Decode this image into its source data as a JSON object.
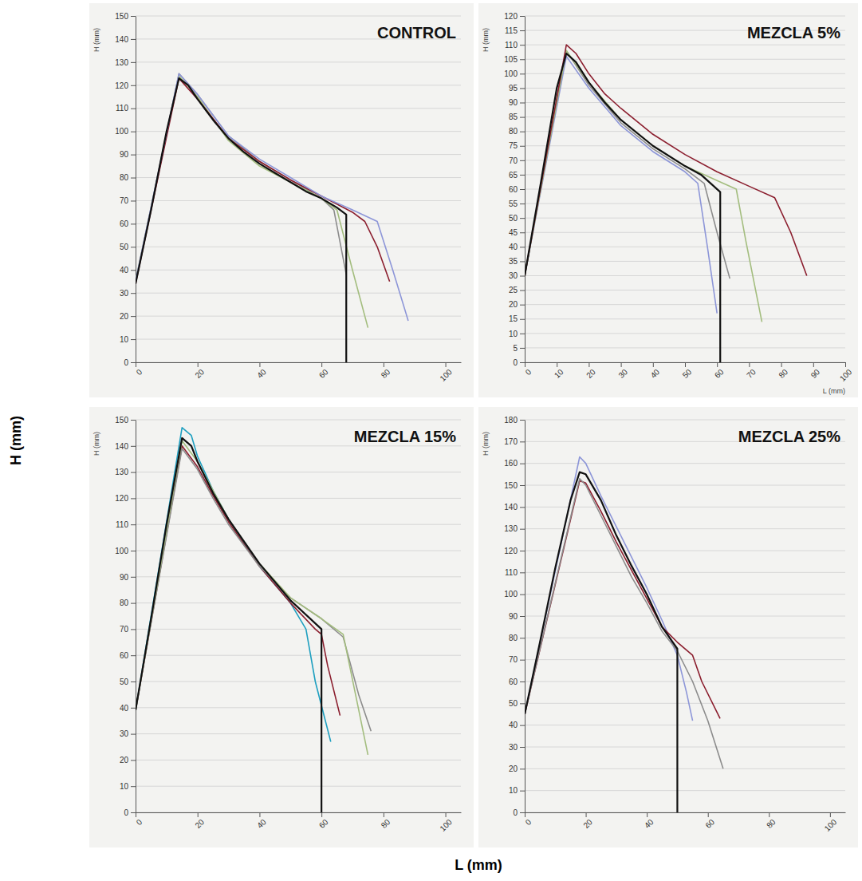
{
  "chart_data": [
    {
      "type": "line",
      "title": "CONTROL",
      "y_label": "H (mm)",
      "grid": true,
      "xlim": [
        0,
        105
      ],
      "ylim": [
        0,
        150
      ],
      "xticks": [
        0,
        20,
        40,
        60,
        80,
        100
      ],
      "yticks": [
        0,
        10,
        20,
        30,
        40,
        50,
        60,
        70,
        80,
        90,
        100,
        110,
        120,
        130,
        140,
        150
      ],
      "series": [
        {
          "color": "#8c8c8c",
          "x": [
            0,
            14,
            20,
            30,
            40,
            50,
            60,
            64,
            68
          ],
          "values": [
            35,
            125,
            116,
            98,
            87,
            79,
            71,
            66,
            38
          ]
        },
        {
          "color": "#a3bd7e",
          "x": [
            0,
            14,
            20,
            30,
            40,
            50,
            60,
            65,
            70,
            75
          ],
          "values": [
            35,
            124,
            115,
            96,
            85,
            78,
            71,
            66,
            40,
            15
          ]
        },
        {
          "color": "#8b1e2e",
          "x": [
            0,
            14,
            20,
            30,
            40,
            50,
            60,
            70,
            74,
            78,
            82
          ],
          "values": [
            34,
            123,
            114,
            97,
            87,
            79,
            72,
            65,
            61,
            50,
            35
          ]
        },
        {
          "color": "#8d96d8",
          "x": [
            0,
            14,
            20,
            30,
            40,
            50,
            60,
            70,
            78,
            83,
            88
          ],
          "values": [
            35,
            125,
            116,
            98,
            88,
            80,
            72,
            66,
            61,
            40,
            18
          ]
        },
        {
          "color": "#111111",
          "x": [
            0,
            5,
            10,
            14,
            17,
            20,
            25,
            30,
            35,
            40,
            45,
            50,
            55,
            60,
            65,
            68,
            68
          ],
          "values": [
            34,
            66,
            100,
            123,
            120,
            114,
            105,
            97,
            91,
            86,
            82,
            78,
            74,
            71,
            67,
            64,
            0
          ]
        }
      ]
    },
    {
      "type": "line",
      "title": "MEZCLA 5%",
      "y_label": "H (mm)",
      "x_label": "L (mm)",
      "grid": true,
      "xlim": [
        0,
        100
      ],
      "ylim": [
        0,
        120
      ],
      "xticks": [
        0,
        10,
        20,
        30,
        40,
        50,
        60,
        70,
        80,
        90,
        100
      ],
      "yticks": [
        0,
        5,
        10,
        15,
        20,
        25,
        30,
        35,
        40,
        45,
        50,
        55,
        60,
        65,
        70,
        75,
        80,
        85,
        90,
        95,
        100,
        105,
        110,
        115,
        120
      ],
      "series": [
        {
          "color": "#8d96d8",
          "x": [
            0,
            13,
            20,
            30,
            40,
            50,
            54,
            57,
            60
          ],
          "values": [
            30,
            106,
            95,
            82,
            73,
            66,
            62,
            40,
            17
          ]
        },
        {
          "color": "#8c8c8c",
          "x": [
            0,
            13,
            20,
            30,
            40,
            50,
            56,
            60,
            64
          ],
          "values": [
            30,
            108,
            96,
            83,
            74,
            67,
            62,
            45,
            29
          ]
        },
        {
          "color": "#a3bd7e",
          "x": [
            0,
            13,
            20,
            30,
            40,
            50,
            60,
            66,
            69,
            74
          ],
          "values": [
            30,
            108,
            97,
            84,
            75,
            68,
            63,
            60,
            42,
            14
          ]
        },
        {
          "color": "#8b1e2e",
          "x": [
            0,
            13,
            16,
            20,
            25,
            30,
            40,
            50,
            60,
            70,
            78,
            83,
            88
          ],
          "values": [
            30,
            110,
            107,
            100,
            93,
            88,
            79,
            72,
            66,
            61,
            57,
            45,
            30
          ]
        },
        {
          "color": "#111111",
          "x": [
            0,
            5,
            10,
            13,
            16,
            20,
            25,
            30,
            40,
            50,
            55,
            61,
            61
          ],
          "values": [
            30,
            62,
            95,
            107,
            104,
            97,
            90,
            84,
            75,
            68,
            65,
            59,
            0
          ]
        }
      ]
    },
    {
      "type": "line",
      "title": "MEZCLA 15%",
      "y_label": "H (mm)",
      "grid": true,
      "xlim": [
        0,
        105
      ],
      "ylim": [
        0,
        150
      ],
      "xticks": [
        0,
        20,
        40,
        60,
        80,
        100
      ],
      "yticks": [
        0,
        10,
        20,
        30,
        40,
        50,
        60,
        70,
        80,
        90,
        100,
        110,
        120,
        130,
        140,
        150
      ],
      "series": [
        {
          "color": "#1e9fc0",
          "x": [
            0,
            15,
            18,
            20,
            25,
            30,
            40,
            50,
            55,
            58,
            63
          ],
          "values": [
            39,
            147,
            144,
            136,
            123,
            112,
            94,
            80,
            70,
            50,
            27
          ]
        },
        {
          "color": "#8b1e2e",
          "x": [
            0,
            15,
            20,
            25,
            30,
            40,
            50,
            58,
            60,
            62,
            66
          ],
          "values": [
            39,
            140,
            132,
            121,
            111,
            94,
            80,
            70,
            68,
            56,
            37
          ]
        },
        {
          "color": "#8c8c8c",
          "x": [
            0,
            15,
            20,
            25,
            30,
            40,
            50,
            60,
            67,
            72,
            76
          ],
          "values": [
            39,
            139,
            131,
            120,
            110,
            94,
            82,
            74,
            67,
            45,
            31
          ]
        },
        {
          "color": "#a3bd7e",
          "x": [
            0,
            15,
            20,
            30,
            40,
            50,
            60,
            67,
            71,
            75
          ],
          "values": [
            39,
            142,
            134,
            112,
            95,
            82,
            74,
            68,
            45,
            22
          ]
        },
        {
          "color": "#111111",
          "x": [
            0,
            5,
            10,
            15,
            18,
            20,
            25,
            30,
            40,
            50,
            60,
            60
          ],
          "values": [
            39,
            74,
            110,
            143,
            140,
            134,
            122,
            112,
            95,
            81,
            70,
            0
          ]
        }
      ]
    },
    {
      "type": "line",
      "title": "MEZCLA 25%",
      "y_label": "H (mm)",
      "grid": true,
      "xlim": [
        0,
        105
      ],
      "ylim": [
        0,
        180
      ],
      "xticks": [
        0,
        20,
        40,
        60,
        80,
        100
      ],
      "yticks": [
        0,
        10,
        20,
        30,
        40,
        50,
        60,
        70,
        80,
        90,
        100,
        110,
        120,
        130,
        140,
        150,
        160,
        170,
        180
      ],
      "series": [
        {
          "color": "#8d96d8",
          "x": [
            0,
            18,
            20,
            25,
            30,
            35,
            40,
            45,
            50,
            53,
            55
          ],
          "values": [
            45,
            163,
            160,
            145,
            131,
            117,
            103,
            88,
            72,
            55,
            42
          ]
        },
        {
          "color": "#8b1e2e",
          "x": [
            0,
            18,
            20,
            25,
            30,
            35,
            40,
            45,
            50,
            55,
            58,
            64
          ],
          "values": [
            45,
            152,
            151,
            138,
            124,
            111,
            98,
            85,
            78,
            72,
            60,
            43
          ]
        },
        {
          "color": "#8c8c8c",
          "x": [
            0,
            18,
            20,
            25,
            30,
            35,
            40,
            45,
            50,
            55,
            60,
            65
          ],
          "values": [
            45,
            153,
            150,
            136,
            122,
            108,
            96,
            83,
            74,
            60,
            42,
            20
          ]
        },
        {
          "color": "#111111",
          "x": [
            0,
            5,
            10,
            15,
            18,
            20,
            25,
            30,
            35,
            40,
            45,
            50,
            50
          ],
          "values": [
            45,
            78,
            112,
            143,
            156,
            155,
            143,
            127,
            113,
            100,
            85,
            75,
            0
          ]
        }
      ]
    }
  ],
  "figure": {
    "y_label": "H (mm)",
    "x_label": "L (mm)"
  }
}
